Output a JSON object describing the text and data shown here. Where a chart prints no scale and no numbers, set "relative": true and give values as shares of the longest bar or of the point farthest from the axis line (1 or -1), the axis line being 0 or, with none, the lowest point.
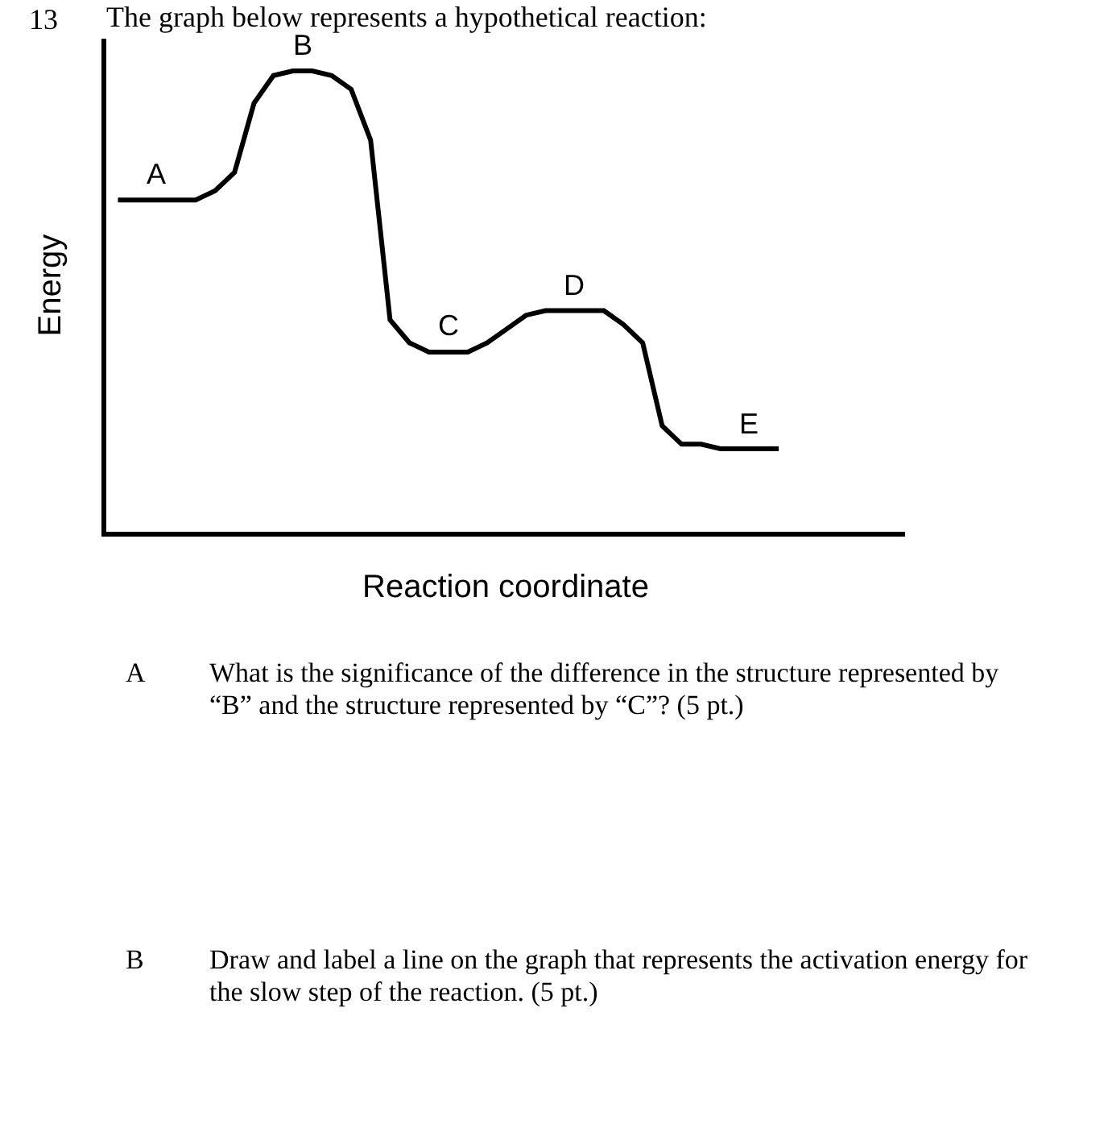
{
  "chart_data": {
    "type": "line",
    "relative": true,
    "title": "The graph below represents a hypothetical reaction:",
    "xlabel": "Reaction coordinate",
    "ylabel": "Energy",
    "categories": [
      null,
      null,
      null,
      null,
      null,
      null,
      null,
      null,
      null,
      null,
      null,
      null,
      null,
      null,
      null,
      null,
      null,
      null,
      null,
      null,
      null,
      null,
      null,
      null,
      null,
      null,
      null,
      null,
      null,
      null,
      null,
      null,
      null,
      null,
      null
    ],
    "series": [
      {
        "color": "#000000",
        "values": [
          0.72,
          0.72,
          0.72,
          0.72,
          0.72,
          0.74,
          0.78,
          0.93,
          0.99,
          1,
          1,
          0.99,
          0.96,
          0.85,
          0.46,
          0.41,
          0.39,
          0.39,
          0.39,
          0.41,
          0.44,
          0.47,
          0.48,
          0.48,
          0.48,
          0.48,
          0.45,
          0.41,
          0.23,
          0.19,
          0.19,
          0.18,
          0.18,
          0.18,
          0.18
        ]
      }
    ],
    "marker": "none",
    "line_style": "solid",
    "grid": false,
    "annotations": [
      {
        "text": "A",
        "y": 0.72
      },
      {
        "text": "B",
        "y": 1
      },
      {
        "text": "C",
        "y": 0.39
      },
      {
        "text": "D",
        "y": 0.48
      },
      {
        "text": "E",
        "y": 0.18
      },
      "13",
      "A",
      "What is the significance of the difference in the structure represented by “B” and the structure represented by “C”? (5 pt.)",
      "B",
      "Draw and label a line on the graph that represents the activation energy for the slow step of the reaction. (5 pt.)"
    ]
  }
}
